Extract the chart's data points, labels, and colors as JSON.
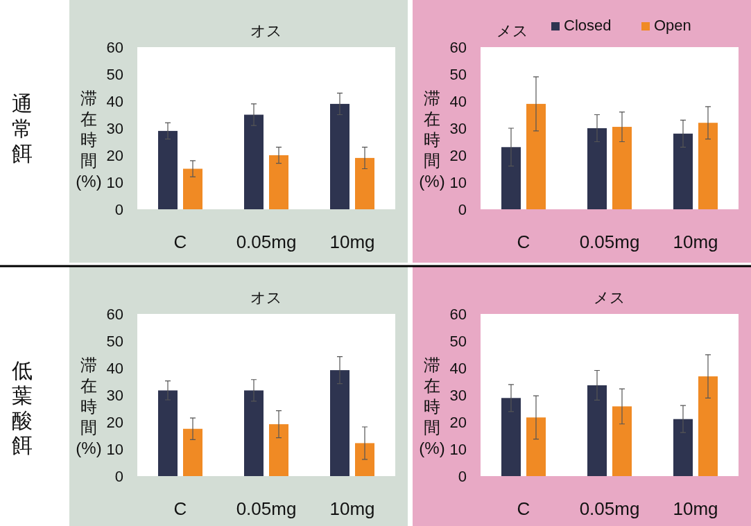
{
  "chart_data": [
    {
      "type": "bar",
      "title": "オス",
      "ylabel": "滞在時間(%)",
      "annotations": [
        "通常餌"
      ],
      "categories": [
        "C",
        "0.05mg",
        "10mg"
      ],
      "ylim": [
        0,
        60
      ],
      "yticks": [
        0,
        10,
        20,
        30,
        40,
        50,
        60
      ],
      "grid": false,
      "legend": false,
      "series": [
        {
          "color": "#2e3450",
          "values": [
            29,
            35,
            39
          ],
          "errors": [
            3,
            4,
            4
          ]
        },
        {
          "color": "#f08a24",
          "values": [
            15,
            20,
            19
          ],
          "errors": [
            3,
            3,
            4
          ]
        }
      ]
    },
    {
      "type": "bar",
      "title": "メス",
      "ylabel": "滞在時間(%)",
      "categories": [
        "C",
        "0.05mg",
        "10mg"
      ],
      "ylim": [
        0,
        60
      ],
      "yticks": [
        0,
        10,
        20,
        30,
        40,
        50,
        60
      ],
      "grid": false,
      "legend": "top right",
      "series": [
        {
          "name": "Closed",
          "color": "#2e3450",
          "values": [
            23,
            30,
            28
          ],
          "errors": [
            7,
            5,
            5
          ]
        },
        {
          "name": "Open",
          "color": "#f08a24",
          "values": [
            39,
            30.5,
            32
          ],
          "errors": [
            10,
            5.5,
            6
          ]
        }
      ]
    },
    {
      "type": "bar",
      "title": "オス",
      "ylabel": "滞在時間(%)",
      "annotations": [
        "低葉酸餌"
      ],
      "categories": [
        "C",
        "0.05mg",
        "10mg"
      ],
      "ylim": [
        0,
        60
      ],
      "yticks": [
        0,
        10,
        20,
        30,
        40,
        50,
        60
      ],
      "grid": false,
      "legend": false,
      "series": [
        {
          "color": "#2e3450",
          "values": [
            31.7,
            31.7,
            39.2
          ],
          "errors": [
            3.5,
            4,
            5
          ]
        },
        {
          "color": "#f08a24",
          "values": [
            17.5,
            19.2,
            12.2
          ],
          "errors": [
            4,
            5,
            6
          ]
        }
      ]
    },
    {
      "type": "bar",
      "title": "メス",
      "ylabel": "滞在時間(%)",
      "categories": [
        "C",
        "0.05mg",
        "10mg"
      ],
      "ylim": [
        0,
        60
      ],
      "yticks": [
        0,
        10,
        20,
        30,
        40,
        50,
        60
      ],
      "grid": false,
      "legend": false,
      "series": [
        {
          "color": "#2e3450",
          "values": [
            28.9,
            33.6,
            21.1
          ],
          "errors": [
            5,
            5.5,
            5
          ]
        },
        {
          "color": "#f08a24",
          "values": [
            21.7,
            25.8,
            36.9
          ],
          "errors": [
            8,
            6.5,
            8
          ]
        }
      ]
    }
  ]
}
